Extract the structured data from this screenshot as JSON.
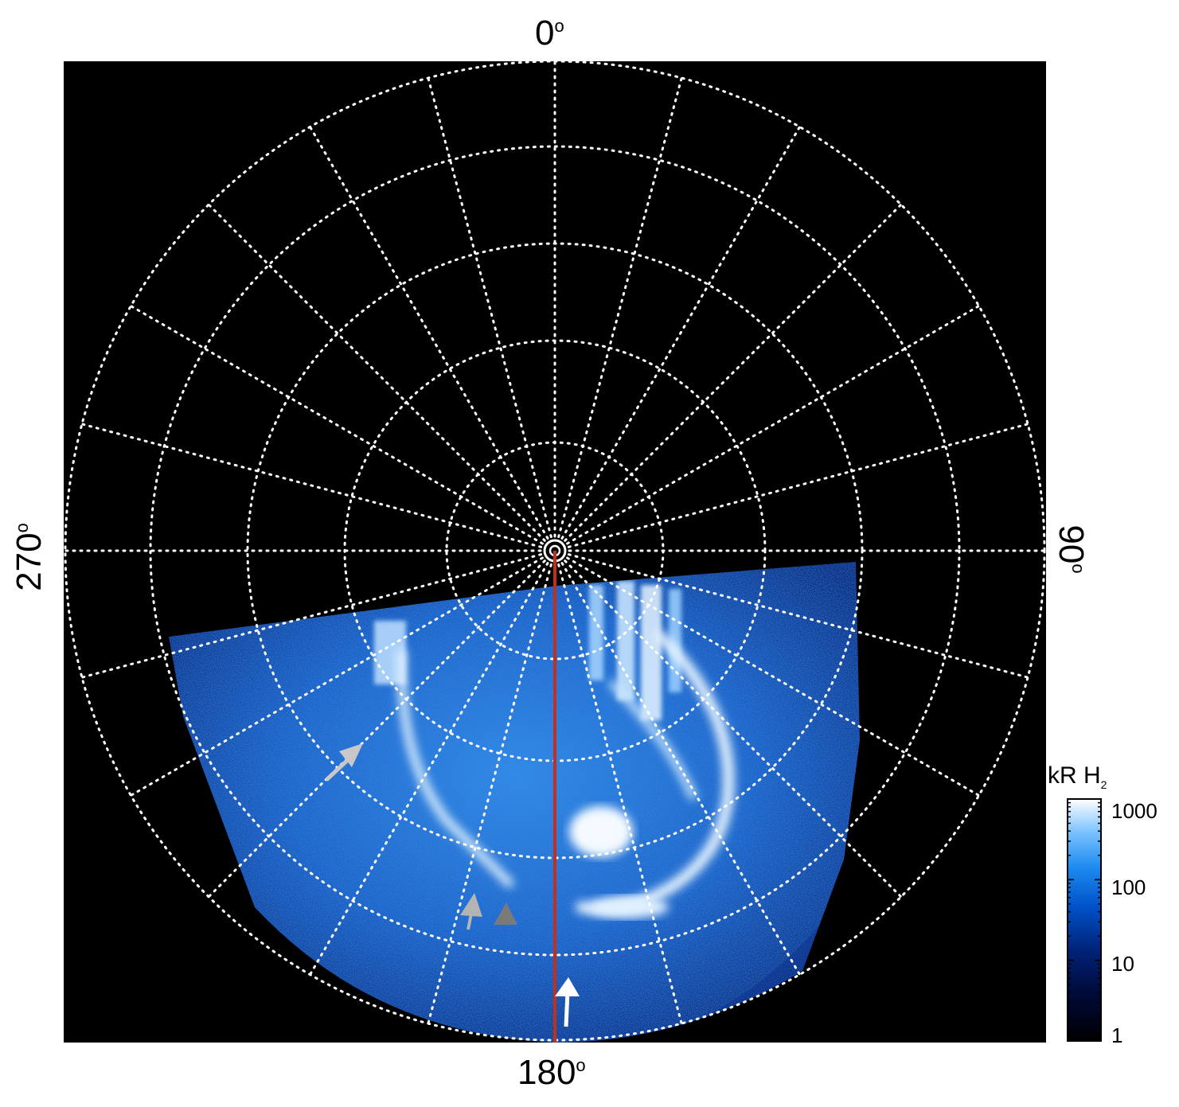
{
  "azimuth_labels": {
    "top": "0",
    "bottom": "180",
    "left": "270",
    "right": "90",
    "degree_symbol": "o"
  },
  "colorbar": {
    "title_main": "kR H",
    "title_sub": "2",
    "tick_labels": [
      "1000",
      "100",
      "10",
      "1"
    ],
    "colors": [
      "#000000",
      "#000a3a",
      "#00247a",
      "#0050c8",
      "#1e8cf0",
      "#78c0ff",
      "#ffffff"
    ]
  },
  "colors": {
    "background_panel": "#000000",
    "grid": "#ffffff",
    "meridian_line": "#c0301a",
    "arrow_white": "#ffffff",
    "arrow_grey": "#b4b4b4",
    "arrow_dark_grey": "#7a7a7a"
  }
}
